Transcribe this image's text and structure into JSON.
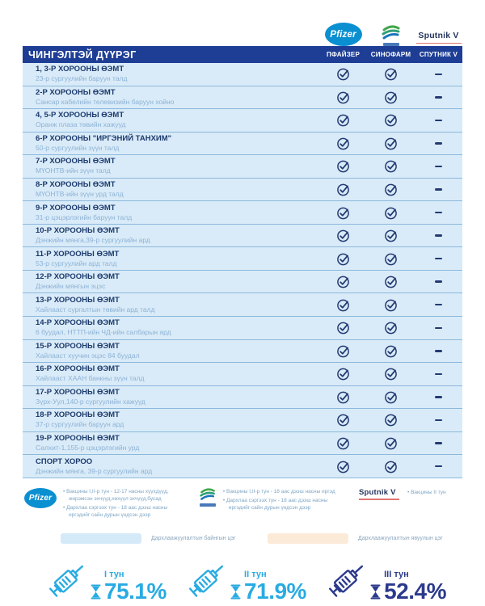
{
  "header": {
    "district_title": "ЧИНГЭЛТЭЙ ДҮҮРЭГ",
    "columns": [
      {
        "key": "pfizer",
        "label": "ПФАЙЗЕР"
      },
      {
        "key": "sinopharm",
        "label": "СИНОФАРМ"
      },
      {
        "key": "sputnik",
        "label": "СПУТНИК V"
      }
    ]
  },
  "logos": {
    "pfizer": "Pfizer",
    "sputnik": "Sputnik V"
  },
  "table": {
    "rows": [
      {
        "title": "1, 3-Р ХОРООНЫ ӨЭМТ",
        "location": "23-р сургуулийн баруун талд",
        "pfizer": "check",
        "sinopharm": "check",
        "sputnik": "dash"
      },
      {
        "title": "2-Р ХОРООНЫ ӨЭМТ",
        "location": "Сансар кабелийн телевизийн баруун хойно",
        "pfizer": "check",
        "sinopharm": "check",
        "sputnik": "dash"
      },
      {
        "title": "4, 5-Р ХОРООНЫ ӨЭМТ",
        "location": "Оранж плаза төвийн хажууд",
        "pfizer": "check",
        "sinopharm": "check",
        "sputnik": "dash"
      },
      {
        "title": "6-Р ХОРООНЫ \"ИРГЭНИЙ ТАНХИМ\"",
        "location": "50-р сургуулийн зүүн талд",
        "pfizer": "check",
        "sinopharm": "check",
        "sputnik": "dash"
      },
      {
        "title": "7-Р ХОРООНЫ ӨЭМТ",
        "location": "МҮОНТВ-ийн зүүн талд",
        "pfizer": "check",
        "sinopharm": "check",
        "sputnik": "dash"
      },
      {
        "title": "8-Р ХОРООНЫ ӨЭМТ",
        "location": "МҮОНТВ-ийн зүүн урд талд",
        "pfizer": "check",
        "sinopharm": "check",
        "sputnik": "dash"
      },
      {
        "title": "9-Р ХОРООНЫ ӨЭМТ",
        "location": "31-р цэцэрлэгийн баруун талд",
        "pfizer": "check",
        "sinopharm": "check",
        "sputnik": "dash"
      },
      {
        "title": "10-Р ХОРООНЫ ӨЭМТ",
        "location": "Дэнжийн мянга,39-р сургуулийн ард",
        "pfizer": "check",
        "sinopharm": "check",
        "sputnik": "dash"
      },
      {
        "title": "11-Р ХОРООНЫ ӨЭМТ",
        "location": "53-р сургуулийн ард талд",
        "pfizer": "check",
        "sinopharm": "check",
        "sputnik": "dash"
      },
      {
        "title": "12-Р ХОРООНЫ ӨЭМТ",
        "location": "Дэнжийн мянгын эцэс",
        "pfizer": "check",
        "sinopharm": "check",
        "sputnik": "dash"
      },
      {
        "title": "13-Р ХОРООНЫ ӨЭМТ",
        "location": "Хайлааст сургалтын төвийн ард талд",
        "pfizer": "check",
        "sinopharm": "check",
        "sputnik": "dash"
      },
      {
        "title": "14-Р ХОРООНЫ ӨЭМТ",
        "location": "6 буудал, НТТП-ийн ЧД-ийн салбарын ард",
        "pfizer": "check",
        "sinopharm": "check",
        "sputnik": "dash"
      },
      {
        "title": "15-Р ХОРООНЫ ӨЭМТ",
        "location": "Хайлааст хуучин эцэс 84 буудал",
        "pfizer": "check",
        "sinopharm": "check",
        "sputnik": "dash"
      },
      {
        "title": "16-Р ХОРООНЫ ӨЭМТ",
        "location": "Хайлааст ХААН банкны зүүн талд",
        "pfizer": "check",
        "sinopharm": "check",
        "sputnik": "dash"
      },
      {
        "title": "17-Р ХОРООНЫ ӨЭМТ",
        "location": "Зүрх-Уул,140-р сургуулийн хажууд",
        "pfizer": "check",
        "sinopharm": "check",
        "sputnik": "dash"
      },
      {
        "title": "18-Р ХОРООНЫ ӨЭМТ",
        "location": "37-р сургуулийн баруун ард",
        "pfizer": "check",
        "sinopharm": "check",
        "sputnik": "dash"
      },
      {
        "title": "19-Р ХОРООНЫ ӨЭМТ",
        "location": "Салхит-1,155-р цэцэрлэгийн урд",
        "pfizer": "check",
        "sinopharm": "check",
        "sputnik": "dash"
      },
      {
        "title": "СПОРТ ХОРОО",
        "location": "Дэнжийн мянга, 39-р сургуулийн ард",
        "pfizer": "check",
        "sinopharm": "check",
        "sputnik": "dash"
      }
    ]
  },
  "footnotes": {
    "pfizer": [
      "Вакцины I,II-р тун - 12-17 насны хүүхдүүд, жирэмсэн эхчүүд,хөхүүл эхчүүд,бусад",
      "Дархлаа сэргээх тун - 18 аас дээш насны иргэдийг сайн дурын үндсэн дээр"
    ],
    "sinopharm": [
      "Вакцины I,II-р тун - 18 аас дээш насны иргэд",
      "Дархлаа сэргээх тун - 18 аас дээш насны иргэдийг сайн дурын үндсэн дээр"
    ],
    "sputnik": [
      "Вакцины II тун"
    ]
  },
  "point_legend": [
    {
      "label": "Дархлаажуулалтын байнгын цэг",
      "color": "#d5eaf8"
    },
    {
      "label": "Дархлаажуулалтын явуулын цэг",
      "color": "#fcead9"
    }
  ],
  "stats": [
    {
      "label": "I тун",
      "value": "75.1%",
      "color": "#29abe2"
    },
    {
      "label": "II тун",
      "value": "71.9%",
      "color": "#29abe2"
    },
    {
      "label": "III тун",
      "value": "52.4%",
      "color": "#2b3a8c"
    }
  ]
}
